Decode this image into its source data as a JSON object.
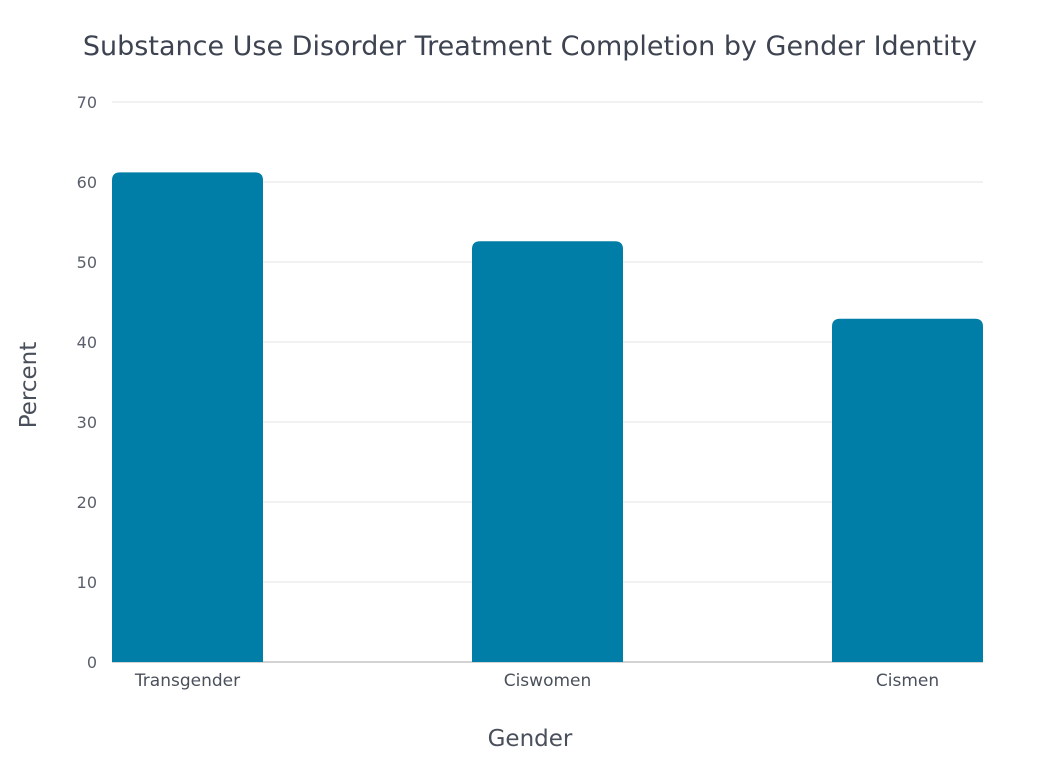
{
  "chart_data": {
    "type": "bar",
    "title": "Substance Use Disorder Treatment Completion by Gender Identity",
    "xlabel": "Gender",
    "ylabel": "Percent",
    "categories": [
      "Transgender",
      "Ciswomen",
      "Cismen"
    ],
    "values": [
      61.2,
      52.6,
      42.9
    ],
    "ylim": [
      0,
      70
    ],
    "yticks": [
      0,
      10,
      20,
      30,
      40,
      50,
      60,
      70
    ],
    "grid": true,
    "legend": "none",
    "bar_color": "#007ea7"
  }
}
